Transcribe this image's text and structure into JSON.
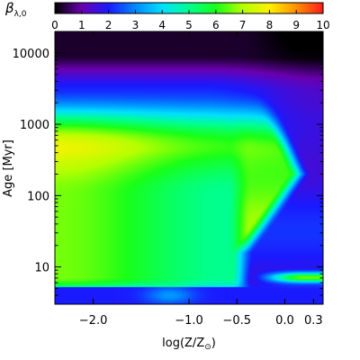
{
  "chart_data": {
    "type": "heatmap",
    "colorbar": {
      "label_symbol": "β",
      "label_subscript": "λ,0",
      "min": 0,
      "max": 10,
      "ticks": [
        "0",
        "1",
        "2",
        "3",
        "4",
        "5",
        "6",
        "7",
        "8",
        "9",
        "10"
      ],
      "tick_values": [
        0,
        1,
        2,
        3,
        4,
        5,
        6,
        7,
        8,
        9,
        10
      ],
      "colormap": [
        "#000000",
        "#6a00b0",
        "#1a1aff",
        "#0088ff",
        "#00e0ff",
        "#00ff90",
        "#18ff18",
        "#b4ff00",
        "#fff000",
        "#ff9000",
        "#ff1a1a"
      ]
    },
    "xaxis": {
      "label_main": "log(Z/Z",
      "label_sub": "⊙",
      "label_end": ")",
      "range": [
        -2.4,
        0.4
      ],
      "ticks": [
        {
          "label": "−2.0",
          "value": -2.0
        },
        {
          "label": "−1.0",
          "value": -1.0
        },
        {
          "label": "−0.5",
          "value": -0.5
        },
        {
          "label": "0.0",
          "value": 0.0
        },
        {
          "label": "0.3",
          "value": 0.3
        }
      ]
    },
    "yaxis": {
      "label_main": "Age",
      "label_unit": "[Myr]",
      "scale": "log",
      "range": [
        3,
        20000
      ],
      "ticks": [
        {
          "label": "10",
          "value": 10
        },
        {
          "label": "100",
          "value": 100
        },
        {
          "label": "1000",
          "value": 1000
        },
        {
          "label": "10000",
          "value": 10000
        }
      ]
    },
    "field_description_points": [
      {
        "logZ": -2.3,
        "age": 150,
        "value": 6.6
      },
      {
        "logZ": -1.5,
        "age": 100,
        "value": 5.5
      },
      {
        "logZ": -0.8,
        "age": 40,
        "value": 5.2
      },
      {
        "logZ": -0.3,
        "age": 25,
        "value": 3.2
      },
      {
        "logZ": 0.3,
        "age": 7,
        "value": 6.5
      },
      {
        "logZ": -1.0,
        "age": 5,
        "value": 3.0
      },
      {
        "logZ": -1.0,
        "age": 3.5,
        "value": 2.0
      },
      {
        "logZ": -2.0,
        "age": 3000,
        "value": 3.5
      },
      {
        "logZ": 0.3,
        "age": 15000,
        "value": 0.4
      }
    ]
  }
}
